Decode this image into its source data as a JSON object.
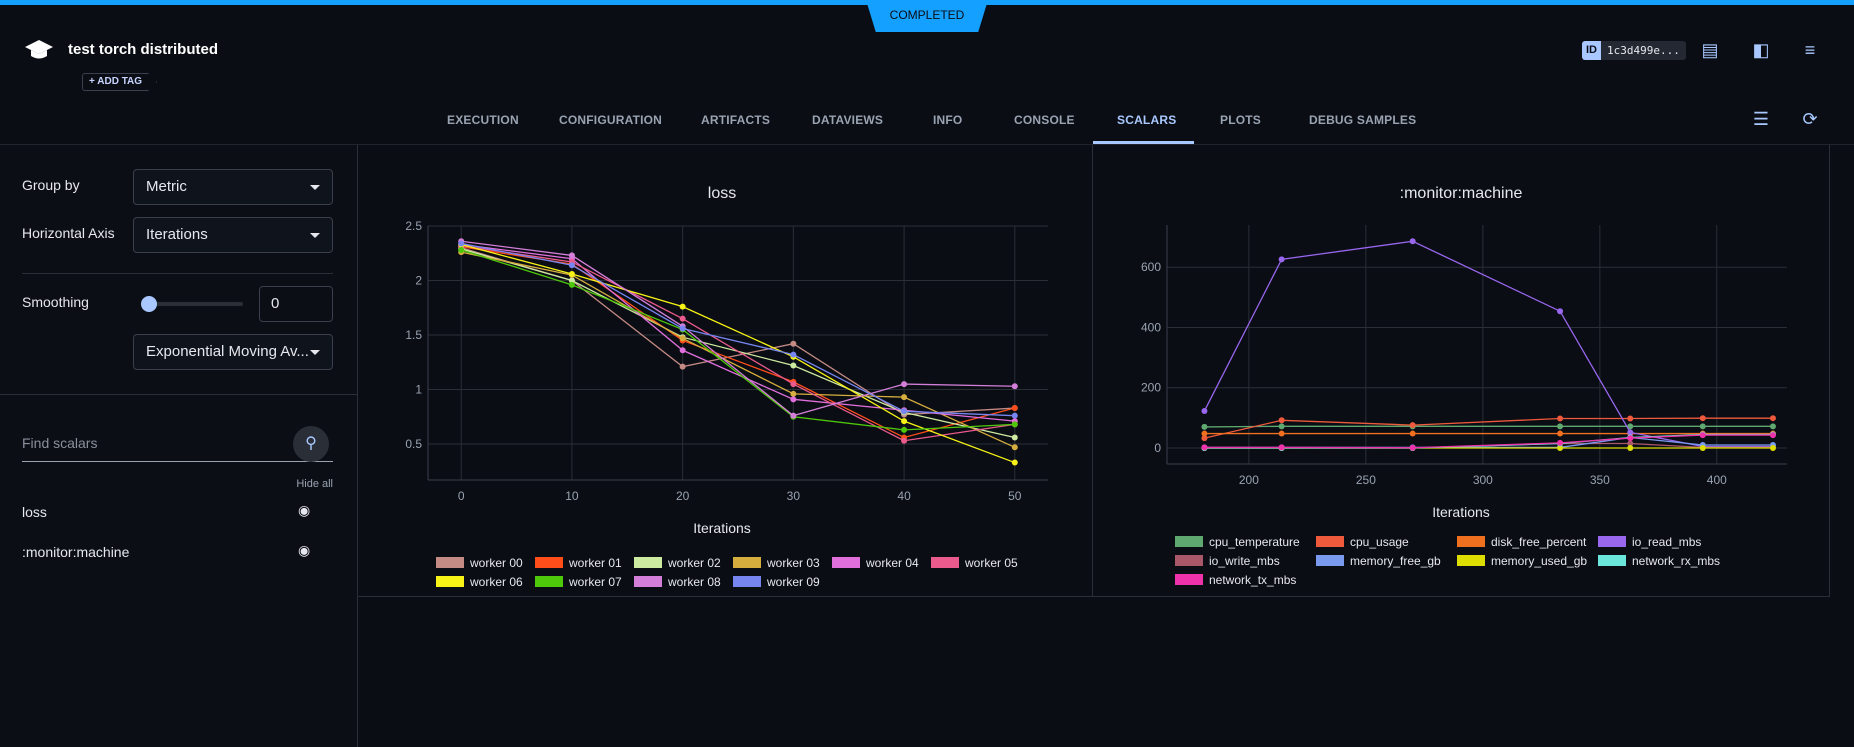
{
  "header": {
    "status": "COMPLETED",
    "title": "test torch distributed",
    "add_tag": "+ ADD TAG",
    "id_label": "ID",
    "id_value": "1c3d499e...",
    "icons": [
      "info-panel-icon",
      "layout-icon",
      "menu-icon"
    ]
  },
  "tabs": [
    {
      "label": "EXECUTION"
    },
    {
      "label": "CONFIGURATION"
    },
    {
      "label": "ARTIFACTS"
    },
    {
      "label": "DATAVIEWS"
    },
    {
      "label": "INFO"
    },
    {
      "label": "CONSOLE"
    },
    {
      "label": "SCALARS",
      "active": true
    },
    {
      "label": "PLOTS"
    },
    {
      "label": "DEBUG SAMPLES"
    }
  ],
  "settings": {
    "group_by_label": "Group by",
    "group_by_value": "Metric",
    "horizontal_axis_label": "Horizontal Axis",
    "horizontal_axis_value": "Iterations",
    "smoothing_label": "Smoothing",
    "smoothing_value": "0",
    "smoothing_fraction": 0,
    "smoothing_method": "Exponential Moving Av..."
  },
  "scalars": {
    "search_placeholder": "Find scalars",
    "hide_all": "Hide all",
    "items": [
      {
        "label": "loss",
        "visible": true
      },
      {
        "label": ":monitor:machine",
        "visible": true
      }
    ]
  },
  "chart_data": [
    {
      "type": "line",
      "title": "loss",
      "xlabel": "Iterations",
      "ylabel": "",
      "xlim": [
        -3,
        53
      ],
      "ylim": [
        0.17,
        2.5
      ],
      "xticks": [
        0,
        10,
        20,
        30,
        40,
        50
      ],
      "yticks": [
        0.5,
        1,
        1.5,
        2,
        2.5
      ],
      "ytick_labels": [
        "0.5",
        "1",
        "1.5",
        "2",
        "2.5"
      ],
      "grid": true,
      "legend": "bottom",
      "x": [
        0,
        10,
        20,
        30,
        40,
        50
      ],
      "series": [
        {
          "name": "worker 00",
          "color": "#c48a84",
          "values": [
            2.3,
            2.0,
            1.21,
            1.42,
            0.77,
            0.83
          ]
        },
        {
          "name": "worker 01",
          "color": "#ff4e1a",
          "values": [
            2.31,
            2.15,
            1.45,
            1.07,
            0.56,
            0.83
          ]
        },
        {
          "name": "worker 02",
          "color": "#cdeba0",
          "values": [
            2.29,
            2.0,
            1.48,
            1.22,
            0.79,
            0.56
          ]
        },
        {
          "name": "worker 03",
          "color": "#d6ae3e",
          "values": [
            2.26,
            2.05,
            1.47,
            0.96,
            0.93,
            0.47
          ]
        },
        {
          "name": "worker 04",
          "color": "#e06fdc",
          "values": [
            2.33,
            2.2,
            1.36,
            0.91,
            0.81,
            0.71
          ]
        },
        {
          "name": "worker 05",
          "color": "#eb5a8c",
          "values": [
            2.32,
            2.17,
            1.65,
            1.05,
            0.53,
            0.68
          ]
        },
        {
          "name": "worker 06",
          "color": "#f7f316",
          "values": [
            2.33,
            2.06,
            1.76,
            1.3,
            0.71,
            0.33
          ]
        },
        {
          "name": "worker 07",
          "color": "#4ec80a",
          "values": [
            2.28,
            1.96,
            1.55,
            0.75,
            0.63,
            0.68
          ]
        },
        {
          "name": "worker 08",
          "color": "#d37ed8",
          "values": [
            2.36,
            2.23,
            1.58,
            0.76,
            1.05,
            1.03
          ]
        },
        {
          "name": "worker 09",
          "color": "#7685ef",
          "values": [
            2.34,
            2.14,
            1.56,
            1.32,
            0.8,
            0.76
          ]
        }
      ]
    },
    {
      "type": "line",
      "title": ":monitor:machine",
      "xlabel": "Iterations",
      "ylabel": "",
      "xlim": [
        165,
        430
      ],
      "ylim": [
        -53,
        740
      ],
      "xticks": [
        200,
        250,
        300,
        350,
        400
      ],
      "yticks": [
        0,
        200,
        400,
        600
      ],
      "ytick_labels": [
        "0",
        "200",
        "400",
        "600"
      ],
      "grid": true,
      "legend": "bottom",
      "x": [
        181,
        214,
        270,
        333,
        363,
        394,
        424
      ],
      "series": [
        {
          "name": "cpu_temperature",
          "color": "#5fa870",
          "values": [
            70,
            72,
            72,
            72,
            72,
            72,
            72
          ]
        },
        {
          "name": "cpu_usage",
          "color": "#ef5a3c",
          "values": [
            33,
            92,
            76,
            98,
            98,
            99,
            99
          ]
        },
        {
          "name": "disk_free_percent",
          "color": "#f07020",
          "values": [
            48,
            48,
            48,
            48,
            48,
            48,
            48
          ]
        },
        {
          "name": "io_read_mbs",
          "color": "#9966ee",
          "values": [
            123,
            626,
            686,
            454,
            52,
            5,
            5
          ]
        },
        {
          "name": "io_write_mbs",
          "color": "#a85868",
          "values": [
            0,
            0,
            0,
            15,
            15,
            2,
            2
          ]
        },
        {
          "name": "memory_free_gb",
          "color": "#7a9af0",
          "values": [
            2,
            2,
            2,
            2,
            35,
            10,
            10
          ]
        },
        {
          "name": "memory_used_gb",
          "color": "#dddd00",
          "values": [
            0,
            0,
            0,
            0,
            0,
            0,
            0
          ]
        },
        {
          "name": "network_rx_mbs",
          "color": "#6ae6da",
          "values": [
            0,
            0,
            0,
            15,
            35,
            45,
            45
          ]
        },
        {
          "name": "network_tx_mbs",
          "color": "#ee33aa",
          "values": [
            2,
            2,
            1,
            17,
            33,
            43,
            43
          ]
        }
      ]
    }
  ]
}
